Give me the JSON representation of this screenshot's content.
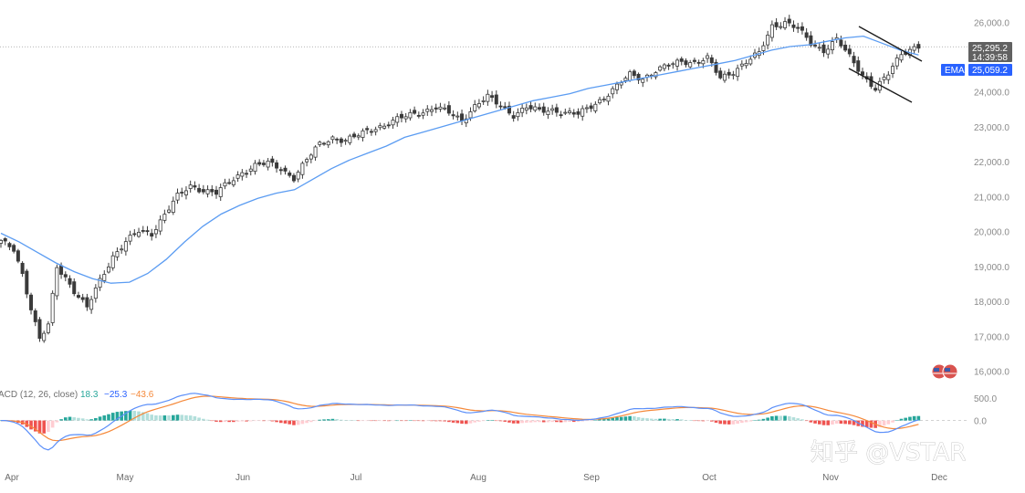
{
  "chart_data": [
    {
      "type": "candlestick",
      "panel": "price",
      "ylim": [
        15700,
        26400
      ],
      "y_ticks": [
        "26,000.0",
        "25,000.0",
        "24,000.0",
        "23,000.0",
        "22,000.0",
        "21,000.0",
        "20,000.0",
        "19,000.0",
        "18,000.0",
        "17,000.0",
        "16,000.0"
      ],
      "y_tick_values": [
        26000,
        25000,
        24000,
        23000,
        22000,
        21000,
        20000,
        19000,
        18000,
        17000,
        16000
      ],
      "x_labels": [
        "Apr",
        "May",
        "Jun",
        "Jul",
        "Aug",
        "Sep",
        "Oct",
        "Nov",
        "Dec"
      ],
      "last_price": "25,295.2",
      "last_price_value": 25295.2,
      "countdown": "14:39:58",
      "ema_label": "EMA",
      "ema_value": "25,059.2",
      "ema_last": 25059.2,
      "ema_path": [
        19950,
        19700,
        19400,
        19100,
        18850,
        18650,
        18520,
        18550,
        18800,
        19200,
        19700,
        20150,
        20500,
        20750,
        20950,
        21100,
        21200,
        21500,
        21800,
        22050,
        22250,
        22450,
        22700,
        22850,
        23000,
        23150,
        23300,
        23450,
        23600,
        23750,
        23850,
        23950,
        24100,
        24200,
        24300,
        24400,
        24500,
        24600,
        24700,
        24800,
        24900,
        25050,
        25200,
        25300,
        25350,
        25450,
        25550,
        25600,
        25400,
        25200,
        25059
      ],
      "series_anchors": [
        [
          0,
          19700
        ],
        [
          3,
          19500
        ],
        [
          5,
          18800
        ],
        [
          7,
          17800
        ],
        [
          9,
          16900
        ],
        [
          11,
          17300
        ],
        [
          13,
          19000
        ],
        [
          15,
          18700
        ],
        [
          17,
          18300
        ],
        [
          20,
          17800
        ],
        [
          23,
          18600
        ],
        [
          26,
          19300
        ],
        [
          29,
          19700
        ],
        [
          32,
          20000
        ],
        [
          35,
          19950
        ],
        [
          38,
          20500
        ],
        [
          41,
          21000
        ],
        [
          44,
          21300
        ],
        [
          47,
          21200
        ],
        [
          50,
          21100
        ],
        [
          53,
          21400
        ],
        [
          56,
          21700
        ],
        [
          59,
          21900
        ],
        [
          62,
          21950
        ],
        [
          65,
          21800
        ],
        [
          68,
          21550
        ],
        [
          71,
          22050
        ],
        [
          74,
          22500
        ],
        [
          77,
          22700
        ],
        [
          80,
          22600
        ],
        [
          83,
          22750
        ],
        [
          86,
          22950
        ],
        [
          89,
          23050
        ],
        [
          92,
          23200
        ],
        [
          95,
          23350
        ],
        [
          98,
          23450
        ],
        [
          101,
          23550
        ],
        [
          104,
          23400
        ],
        [
          107,
          23200
        ],
        [
          110,
          23600
        ],
        [
          113,
          23850
        ],
        [
          116,
          23600
        ],
        [
          119,
          23350
        ],
        [
          122,
          23550
        ],
        [
          125,
          23450
        ],
        [
          128,
          23500
        ],
        [
          131,
          23400
        ],
        [
          134,
          23350
        ],
        [
          137,
          23600
        ],
        [
          140,
          23850
        ],
        [
          143,
          24150
        ],
        [
          146,
          24500
        ],
        [
          149,
          24400
        ],
        [
          152,
          24600
        ],
        [
          155,
          24750
        ],
        [
          158,
          24900
        ],
        [
          161,
          24850
        ],
        [
          164,
          24950
        ],
        [
          167,
          24400
        ],
        [
          170,
          24600
        ],
        [
          173,
          24850
        ],
        [
          176,
          25100
        ],
        [
          179,
          25900
        ],
        [
          182,
          26000
        ],
        [
          185,
          25800
        ],
        [
          188,
          25400
        ],
        [
          191,
          25200
        ],
        [
          194,
          25500
        ],
        [
          197,
          25000
        ],
        [
          200,
          24500
        ],
        [
          203,
          24100
        ],
        [
          206,
          24500
        ],
        [
          209,
          25100
        ],
        [
          212,
          25295
        ]
      ]
    },
    {
      "type": "histogram+line",
      "panel": "macd",
      "label": "ACD (12, 26, close)",
      "values": [
        "18.3",
        "−25.3",
        "−43.6"
      ],
      "zero_tick": "0.0",
      "top_tick": "500.0",
      "ylim": [
        -1000,
        700
      ],
      "hist_colors": {
        "pos_strong": "#26a69a",
        "pos_weak": "#b2dfdb",
        "neg_strong": "#ef5350",
        "neg_weak": "#ffcdd2"
      }
    }
  ],
  "colors": {
    "candle_body": "#3a3a3a",
    "ema_line": "#5b9cf2",
    "macd_line": "#5b8ff9",
    "signal_line": "#f5893a",
    "ema_tag_bg": "#2962ff",
    "price_tag_bg": "#616161",
    "channel_line": "#1a1a1a",
    "grid_dotted": "#9e9e9e"
  },
  "watermark": "知乎 @VSTAR"
}
